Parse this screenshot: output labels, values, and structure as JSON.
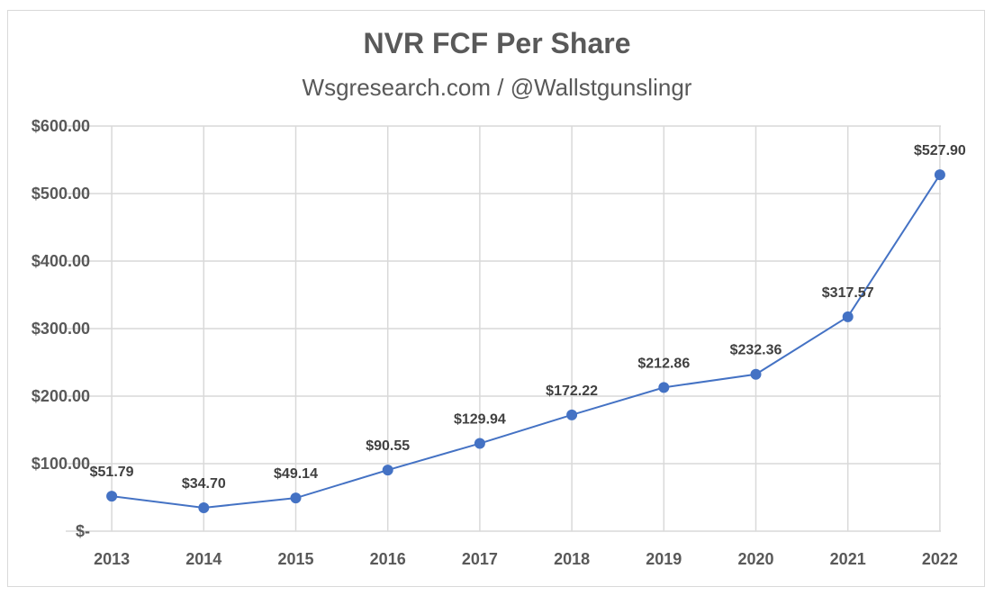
{
  "chart_data": {
    "type": "line",
    "title": "NVR FCF Per Share",
    "subtitle": "Wsgresearch.com / @Wallstgunslingr",
    "categories": [
      "2013",
      "2014",
      "2015",
      "2016",
      "2017",
      "2018",
      "2019",
      "2020",
      "2021",
      "2022"
    ],
    "series": [
      {
        "values": [
          51.79,
          34.7,
          49.14,
          90.55,
          129.94,
          172.22,
          212.86,
          232.36,
          317.57,
          527.9
        ],
        "data_labels": [
          "$51.79",
          "$34.70",
          "$49.14",
          "$90.55",
          "$129.94",
          "$172.22",
          "$212.86",
          "$232.36",
          "$317.57",
          "$527.90"
        ],
        "color": "#4472c4"
      }
    ],
    "yticks": [
      0,
      100,
      200,
      300,
      400,
      500,
      600
    ],
    "ytick_labels": [
      "$-",
      "$100.00",
      "$200.00",
      "$300.00",
      "$400.00",
      "$500.00",
      "$600.00"
    ],
    "ylim": [
      0,
      600
    ],
    "xlabel": "",
    "ylabel": "",
    "grid": true,
    "legend": "none",
    "colors": {
      "line": "#4472c4",
      "grid": "#d9d9d9",
      "text": "#595959"
    }
  }
}
